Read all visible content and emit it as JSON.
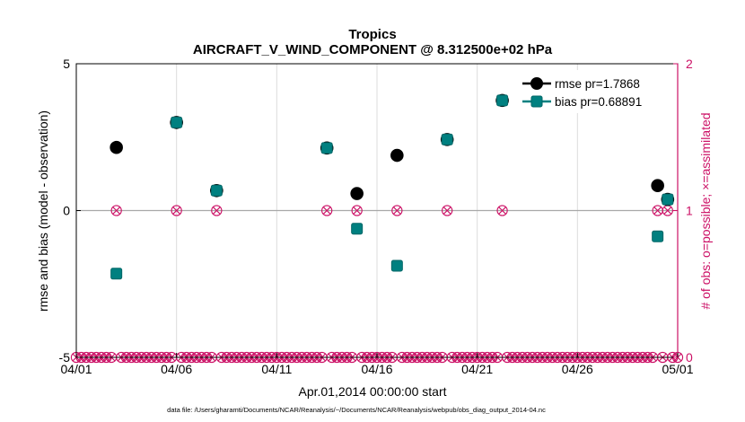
{
  "chart_data": {
    "type": "scatter",
    "title": "Tropics",
    "subtitle": "AIRCRAFT_V_WIND_COMPONENT @ 8.312500e+02 hPa",
    "xlabel": "Apr.01,2014 00:00:00 start",
    "ylabel_left": "rmse and bias (model - observation)",
    "ylabel_right": "# of obs: o=possible; ×=assimilated",
    "footnote": "data file: /Users/gharamti/Documents/NCAR/Reanalysis/~/Documents/NCAR/Reanalysis/webpub/obs_diag_output_2014-04.nc",
    "xlim": [
      0,
      30
    ],
    "ylim_left": [
      -5,
      5
    ],
    "ylim_right": [
      0,
      2
    ],
    "x_tick_values": [
      0,
      5,
      10,
      15,
      20,
      25,
      30
    ],
    "x_tick_labels": [
      "04/01",
      "04/06",
      "04/11",
      "04/16",
      "04/21",
      "04/26",
      "05/01"
    ],
    "y_left_ticks": [
      -5,
      0,
      5
    ],
    "y_left_tick_labels": [
      "-5",
      "0",
      "5"
    ],
    "y_right_ticks": [
      0,
      1,
      2
    ],
    "y_right_tick_labels": [
      "0",
      "1",
      "2"
    ],
    "grid": "vertical",
    "legend_position": "top-right",
    "series": [
      {
        "name": "rmse pr=1.7868",
        "color": "#000000",
        "marker": "circle",
        "x": [
          2.0,
          5.0,
          7.0,
          12.5,
          14.0,
          16.0,
          18.5,
          21.25,
          29.0,
          29.5
        ],
        "values": [
          2.15,
          3.0,
          0.68,
          2.13,
          0.58,
          1.88,
          2.42,
          3.75,
          0.85,
          0.38
        ]
      },
      {
        "name": "bias pr=0.68891",
        "color": "#008080",
        "marker": "square",
        "x": [
          2.0,
          5.0,
          7.0,
          12.5,
          14.0,
          16.0,
          18.5,
          21.25,
          29.0,
          29.5
        ],
        "values": [
          -2.15,
          3.0,
          0.68,
          2.13,
          -0.62,
          -1.88,
          2.42,
          3.75,
          -0.88,
          0.38
        ]
      }
    ],
    "obs_count": {
      "color": "#cc1166",
      "x_one": [
        2.0,
        5.0,
        7.0,
        12.5,
        14.0,
        16.0,
        18.5,
        21.25,
        29.0,
        29.5
      ],
      "value_one": 1,
      "value_zero": 0,
      "slot_step": 0.25
    }
  }
}
